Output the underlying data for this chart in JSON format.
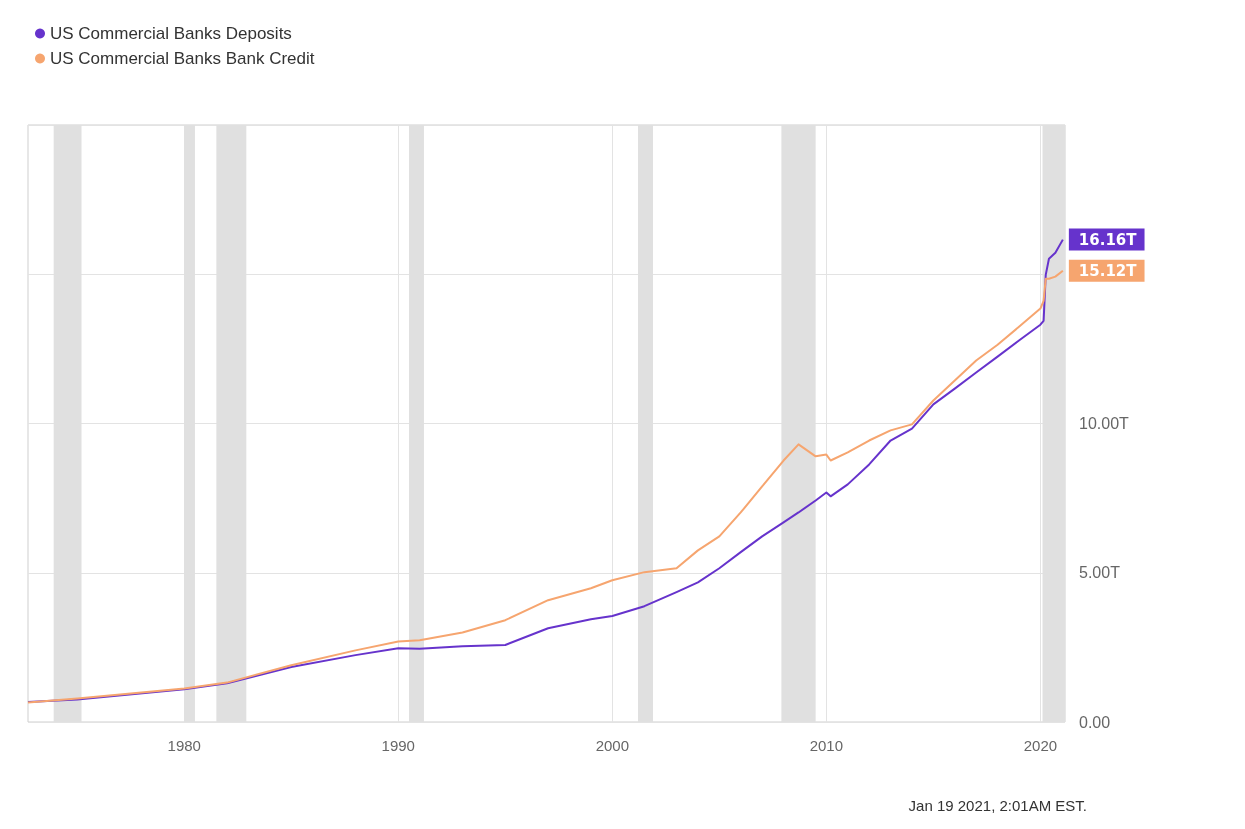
{
  "chart_data": {
    "type": "line",
    "legend": "top left",
    "grid": true,
    "marker": "none",
    "xlim": [
      1972.7,
      2021.15
    ],
    "xticks": [
      1980,
      1990,
      2000,
      2010,
      2020
    ],
    "ylim": [
      0,
      20
    ],
    "yticks": [
      {
        "value": 0,
        "label": "0.00"
      },
      {
        "value": 5,
        "label": "5.00T"
      },
      {
        "value": 10,
        "label": "10.00T"
      },
      {
        "value": 15,
        "label": null
      },
      {
        "value": 20,
        "label": null
      }
    ],
    "bands": [
      {
        "axis": "x",
        "from": 1973.9,
        "to": 1975.2,
        "color": "#e0e0e0"
      },
      {
        "axis": "x",
        "from": 1980.0,
        "to": 1980.5,
        "color": "#e0e0e0"
      },
      {
        "axis": "x",
        "from": 1981.5,
        "to": 1982.9,
        "color": "#e0e0e0"
      },
      {
        "axis": "x",
        "from": 1990.5,
        "to": 1991.2,
        "color": "#e0e0e0"
      },
      {
        "axis": "x",
        "from": 2001.2,
        "to": 2001.9,
        "color": "#e0e0e0"
      },
      {
        "axis": "x",
        "from": 2007.9,
        "to": 2009.5,
        "color": "#e0e0e0"
      },
      {
        "axis": "x",
        "from": 2020.1,
        "to": 2021.15,
        "color": "#e0e0e0"
      }
    ],
    "series": [
      {
        "name": "US Commercial Banks Deposits",
        "color": "#6633cc",
        "x": [
          1972.7,
          1975,
          1980,
          1982,
          1985,
          1988,
          1990,
          1991,
          1993,
          1995,
          1997,
          1999,
          2000,
          2001.5,
          2003,
          2004,
          2005,
          2006,
          2007,
          2008,
          2008.7,
          2009.5,
          2010,
          2010.2,
          2011,
          2012,
          2013,
          2014,
          2015,
          2016,
          2017,
          2018,
          2019,
          2020,
          2020.15,
          2020.25,
          2020.4,
          2020.7,
          2021.05
        ],
        "values": [
          0.67,
          0.75,
          1.1,
          1.3,
          1.84,
          2.24,
          2.47,
          2.45,
          2.54,
          2.58,
          3.14,
          3.44,
          3.55,
          3.88,
          4.35,
          4.68,
          5.15,
          5.69,
          6.22,
          6.69,
          7.02,
          7.42,
          7.69,
          7.56,
          7.96,
          8.63,
          9.43,
          9.83,
          10.64,
          11.17,
          11.71,
          12.24,
          12.78,
          13.31,
          13.44,
          14.98,
          15.52,
          15.72,
          16.16
        ]
      },
      {
        "name": "US Commercial Banks Bank Credit",
        "color": "#f6a56f",
        "x": [
          1972.7,
          1975,
          1980,
          1982,
          1985,
          1988,
          1990,
          1991,
          1993,
          1995,
          1997,
          1999,
          2000,
          2001.5,
          2003,
          2004,
          2005,
          2006,
          2007,
          2008,
          2008.7,
          2009.5,
          2010,
          2010.2,
          2011,
          2012,
          2013,
          2014,
          2015,
          2016,
          2017,
          2018,
          2019,
          2020,
          2020.15,
          2020.25,
          2020.4,
          2020.7,
          2021.05
        ],
        "values": [
          0.65,
          0.79,
          1.12,
          1.32,
          1.9,
          2.4,
          2.7,
          2.74,
          3.0,
          3.41,
          4.08,
          4.48,
          4.75,
          5.02,
          5.15,
          5.75,
          6.22,
          7.02,
          7.89,
          8.76,
          9.3,
          8.9,
          8.96,
          8.76,
          9.03,
          9.43,
          9.77,
          9.97,
          10.77,
          11.44,
          12.11,
          12.64,
          13.24,
          13.85,
          14.11,
          14.85,
          14.85,
          14.92,
          15.12
        ]
      }
    ],
    "annotations": [
      {
        "text": "16.16T",
        "x": 2021.05,
        "y": 16.16
      },
      {
        "text": "15.12T",
        "x": 2021.05,
        "y": 15.12
      },
      "Jan 19 2021, 2:01AM EST."
    ]
  }
}
